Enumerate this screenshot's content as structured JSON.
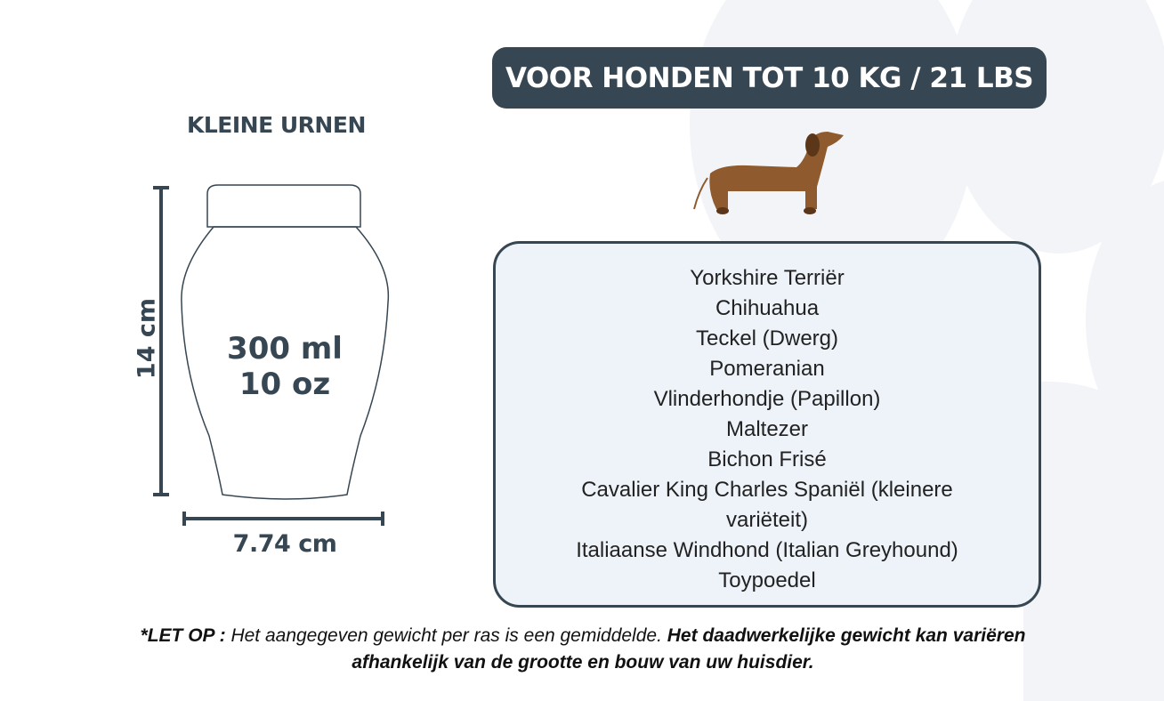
{
  "header": {
    "title": "VOOR HONDEN TOT 10 KG / 21 LBS"
  },
  "urn": {
    "label": "KLEINE URNEN",
    "volume_ml": "300 ml",
    "volume_oz": "10 oz",
    "height": "14 cm",
    "width": "7.74 cm"
  },
  "breeds": [
    "Yorkshire Terriër",
    "Chihuahua",
    "Teckel (Dwerg)",
    "Pomeranian",
    "Vlinderhondje (Papillon)",
    "Maltezer",
    "Bichon Frisé",
    "Cavalier King Charles Spaniël (kleinere variëteit)",
    "Italiaanse Windhond (Italian Greyhound)",
    "Toypoedel"
  ],
  "note": {
    "prefix": "*LET OP :",
    "regular": " Het aangegeven gewicht per ras is een gemiddelde. ",
    "bold": "Het daadwerkelijke gewicht kan variëren afhankelijk van de grootte en bouw van uw huisdier."
  },
  "colors": {
    "primary": "#364652",
    "box_bg": "#eef3f9",
    "paw": "#f2f4f7",
    "dog": "#8e5a2e"
  },
  "icons": {
    "dog": "dachshund-illustration",
    "background": "paw-print"
  }
}
